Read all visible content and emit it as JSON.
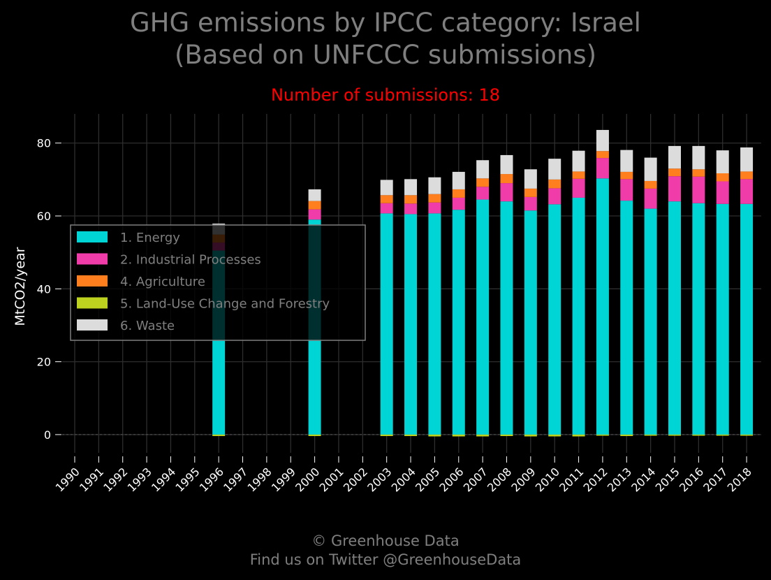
{
  "title_line1": "GHG emissions by IPCC category: Israel",
  "title_line2": "(Based on UNFCCC submissions)",
  "subtitle": "Number of submissions: 18",
  "footer_line1": "© Greenhouse Data",
  "footer_line2": "Find us on Twitter @GreenhouseData",
  "chart_data": {
    "type": "bar",
    "stacked": true,
    "ylabel": "MtCO2/year",
    "xlabel": "",
    "ylim": [
      -5,
      88
    ],
    "yticks": [
      0,
      20,
      40,
      60,
      80
    ],
    "grid": true,
    "legend_position": "center-left",
    "categories": [
      "1990",
      "1991",
      "1992",
      "1993",
      "1994",
      "1995",
      "1996",
      "1997",
      "1998",
      "1999",
      "2000",
      "2001",
      "2002",
      "2003",
      "2004",
      "2005",
      "2006",
      "2007",
      "2008",
      "2009",
      "2010",
      "2011",
      "2012",
      "2013",
      "2014",
      "2015",
      "2016",
      "2017",
      "2018"
    ],
    "series": [
      {
        "name": "1. Energy",
        "color": "#00d5d5",
        "values": [
          null,
          null,
          null,
          null,
          null,
          null,
          50.5,
          null,
          null,
          null,
          59.0,
          null,
          null,
          60.7,
          60.5,
          60.7,
          61.7,
          64.5,
          64.0,
          61.5,
          63.2,
          65.0,
          70.3,
          64.2,
          62.0,
          64.0,
          63.5,
          63.3,
          63.3
        ]
      },
      {
        "name": "2. Industrial Processes",
        "color": "#f03ca8",
        "values": [
          null,
          null,
          null,
          null,
          null,
          null,
          2.2,
          null,
          null,
          null,
          2.8,
          null,
          null,
          2.8,
          2.9,
          3.0,
          3.3,
          3.5,
          5.0,
          3.7,
          4.4,
          5.2,
          5.6,
          5.9,
          5.5,
          6.9,
          7.3,
          6.2,
          6.8
        ]
      },
      {
        "name": "4. Agriculture",
        "color": "#ff7f1e",
        "values": [
          null,
          null,
          null,
          null,
          null,
          null,
          2.2,
          null,
          null,
          null,
          2.3,
          null,
          null,
          2.2,
          2.3,
          2.3,
          2.3,
          2.3,
          2.5,
          2.3,
          2.4,
          2.0,
          1.9,
          2.0,
          2.1,
          2.1,
          2.0,
          2.2,
          2.1
        ]
      },
      {
        "name": "5. Land-Use Change and Forestry",
        "color": "#bcd21e",
        "values": [
          null,
          null,
          null,
          null,
          null,
          null,
          -0.4,
          null,
          null,
          null,
          -0.4,
          null,
          null,
          -0.4,
          -0.4,
          -0.5,
          -0.5,
          -0.5,
          -0.4,
          -0.5,
          -0.5,
          -0.5,
          -0.3,
          -0.4,
          -0.3,
          -0.3,
          -0.3,
          -0.3,
          -0.3
        ]
      },
      {
        "name": "6. Waste",
        "color": "#dcdcdc",
        "values": [
          null,
          null,
          null,
          null,
          null,
          null,
          3.0,
          null,
          null,
          null,
          3.2,
          null,
          null,
          4.2,
          4.4,
          4.6,
          4.8,
          5.0,
          5.2,
          5.3,
          5.7,
          5.7,
          5.8,
          6.0,
          6.4,
          6.2,
          6.4,
          6.3,
          6.6
        ]
      }
    ]
  }
}
